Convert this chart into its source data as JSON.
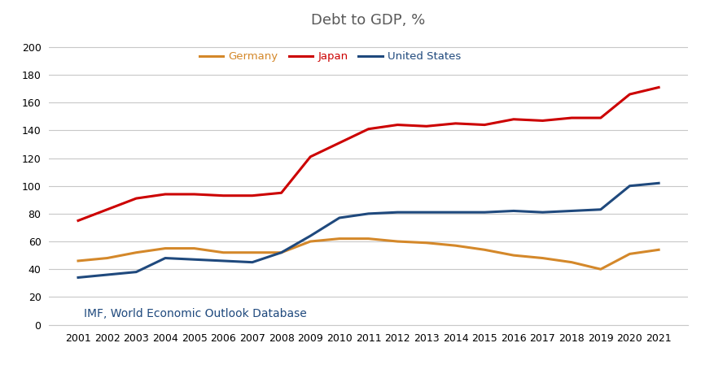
{
  "title": "Debt to GDP, %",
  "source": "IMF, World Economic Outlook Database",
  "years": [
    2001,
    2002,
    2003,
    2004,
    2005,
    2006,
    2007,
    2008,
    2009,
    2010,
    2011,
    2012,
    2013,
    2014,
    2015,
    2016,
    2017,
    2018,
    2019,
    2020,
    2021
  ],
  "germany": [
    46,
    48,
    52,
    55,
    55,
    52,
    52,
    52,
    60,
    62,
    62,
    60,
    59,
    57,
    54,
    50,
    48,
    45,
    40,
    51,
    54
  ],
  "japan": [
    75,
    83,
    91,
    94,
    94,
    93,
    93,
    95,
    121,
    131,
    141,
    144,
    143,
    145,
    144,
    148,
    147,
    149,
    149,
    166,
    171
  ],
  "us": [
    34,
    36,
    38,
    48,
    47,
    46,
    45,
    52,
    64,
    77,
    80,
    81,
    81,
    81,
    81,
    82,
    81,
    82,
    83,
    100,
    102
  ],
  "germany_color": "#d4882a",
  "japan_color": "#cc0000",
  "us_color": "#1f497d",
  "background_color": "#ffffff",
  "grid_color": "#c8c8c8",
  "title_color": "#595959",
  "source_color": "#1f497d",
  "ylim": [
    0,
    210
  ],
  "yticks": [
    0,
    20,
    40,
    60,
    80,
    100,
    120,
    140,
    160,
    180,
    200
  ],
  "legend_labels": [
    "Germany",
    "Japan",
    "United States"
  ],
  "title_fontsize": 13,
  "source_fontsize": 10,
  "axis_fontsize": 9,
  "legend_fontsize": 9.5,
  "line_width": 2.2
}
